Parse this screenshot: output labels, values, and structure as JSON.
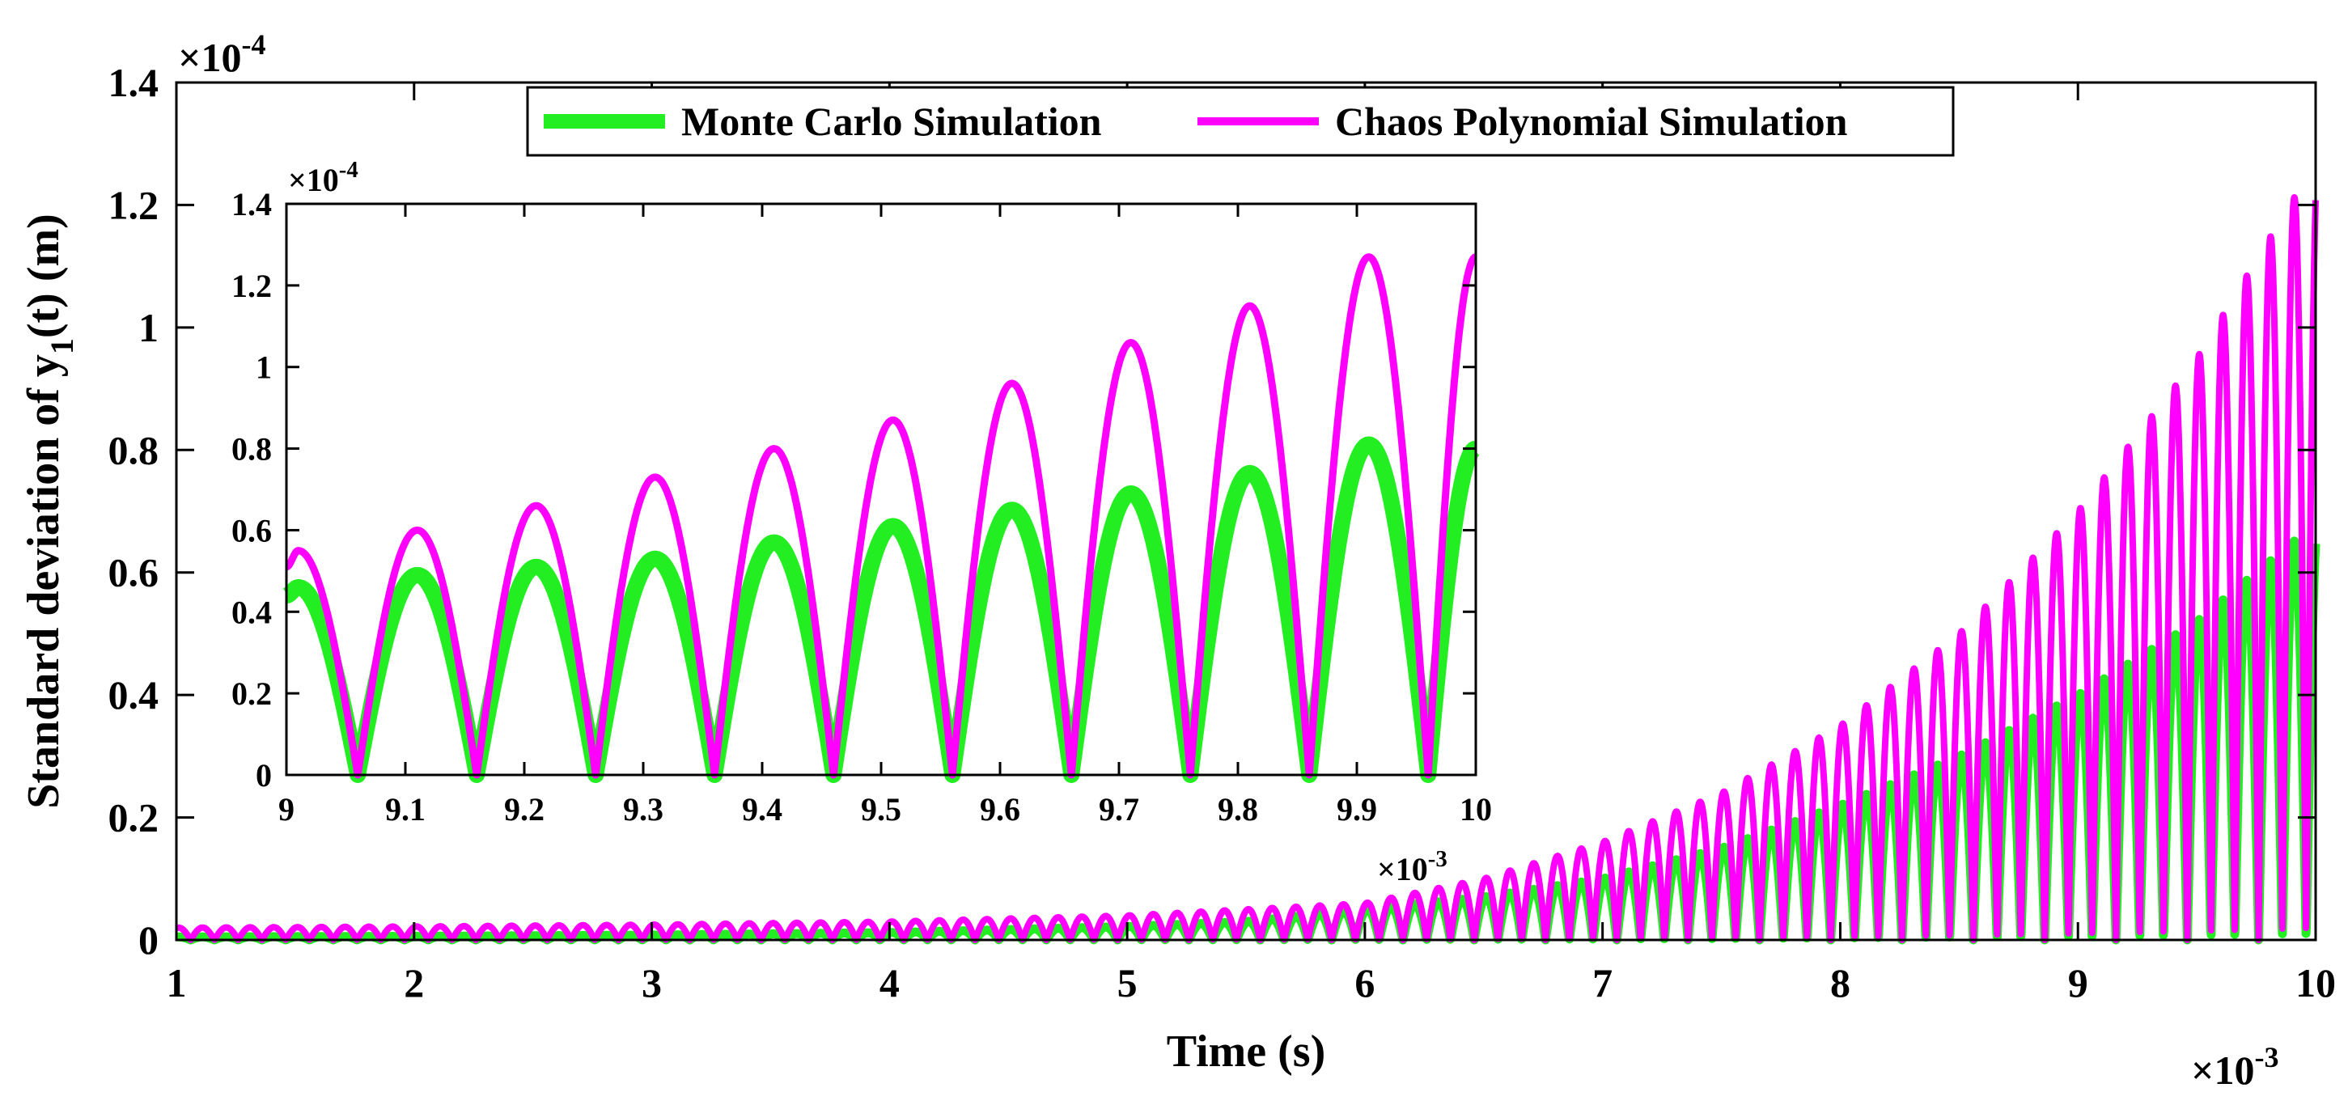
{
  "chart_data": [
    {
      "type": "line",
      "panel": "main",
      "xlabel": "Time (s)",
      "ylabel": "Standard deviation of  y",
      "ylabel_subscript": "1",
      "ylabel_suffix": "(t) (m)",
      "x_exponent_base": "×10",
      "x_exponent": "-3",
      "y_exponent_base": "×10",
      "y_exponent": "-4",
      "xlim": [
        1,
        10
      ],
      "ylim": [
        0,
        1.4
      ],
      "xticks": [
        "1",
        "2",
        "3",
        "4",
        "5",
        "6",
        "7",
        "8",
        "9",
        "10"
      ],
      "yticks": [
        "0",
        "0.2",
        "0.4",
        "0.6",
        "0.8",
        "1",
        "1.2",
        "1.4"
      ],
      "grid": false,
      "legend_position": "top-center",
      "oscillation_period": 0.1,
      "series": [
        {
          "name": "Monte Carlo Simulation",
          "color": "#22ee22",
          "envelope": {
            "x": [
              1,
              2,
              3,
              4,
              5,
              5.5,
              6,
              6.5,
              7,
              7.5,
              8,
              8.5,
              9,
              9.5,
              10
            ],
            "y": [
              0.005,
              0.006,
              0.008,
              0.012,
              0.022,
              0.03,
              0.05,
              0.07,
              0.1,
              0.15,
              0.22,
              0.3,
              0.4,
              0.52,
              0.68
            ]
          }
        },
        {
          "name": "Chaos Polynomial Simulation",
          "color": "#ff00ff",
          "envelope": {
            "x": [
              1,
              2,
              3,
              4,
              5,
              5.5,
              6,
              6.5,
              7,
              7.5,
              8,
              8.5,
              9,
              9.5,
              10
            ],
            "y": [
              0.02,
              0.022,
              0.025,
              0.03,
              0.04,
              0.05,
              0.06,
              0.1,
              0.16,
              0.24,
              0.35,
              0.5,
              0.7,
              0.95,
              1.27
            ]
          }
        }
      ]
    },
    {
      "type": "line",
      "panel": "inset",
      "x_exponent_base": "×10",
      "x_exponent": "-3",
      "y_exponent_base": "×10",
      "y_exponent": "-4",
      "xlim": [
        9,
        10
      ],
      "ylim": [
        0,
        1.4
      ],
      "xticks": [
        "9",
        "9.1",
        "9.2",
        "9.3",
        "9.4",
        "9.5",
        "9.6",
        "9.7",
        "9.8",
        "9.9",
        "10"
      ],
      "yticks": [
        "0",
        "0.2",
        "0.4",
        "0.6",
        "0.8",
        "1",
        "1.2",
        "1.4"
      ],
      "grid": false,
      "oscillation_period": 0.1,
      "zero_points": [
        9.06,
        9.16,
        9.26,
        9.36,
        9.46,
        9.56,
        9.66,
        9.76,
        9.86,
        9.96
      ],
      "series": [
        {
          "name": "Monte Carlo Simulation",
          "color": "#22ee22",
          "peaks": {
            "x": [
              9.01,
              9.11,
              9.21,
              9.31,
              9.41,
              9.51,
              9.61,
              9.71,
              9.81,
              9.91
            ],
            "y": [
              0.46,
              0.49,
              0.51,
              0.53,
              0.57,
              0.61,
              0.65,
              0.69,
              0.74,
              0.81
            ]
          },
          "start": [
            9,
            0.44
          ],
          "end": [
            10,
            0.8
          ]
        },
        {
          "name": "Chaos Polynomial Simulation",
          "color": "#ff00ff",
          "peaks": {
            "x": [
              9.01,
              9.11,
              9.21,
              9.31,
              9.41,
              9.51,
              9.61,
              9.71,
              9.81,
              9.91
            ],
            "y": [
              0.55,
              0.6,
              0.66,
              0.73,
              0.8,
              0.87,
              0.96,
              1.06,
              1.15,
              1.27
            ]
          },
          "start": [
            9,
            0.51
          ],
          "end": [
            10,
            1.27
          ]
        }
      ]
    }
  ]
}
